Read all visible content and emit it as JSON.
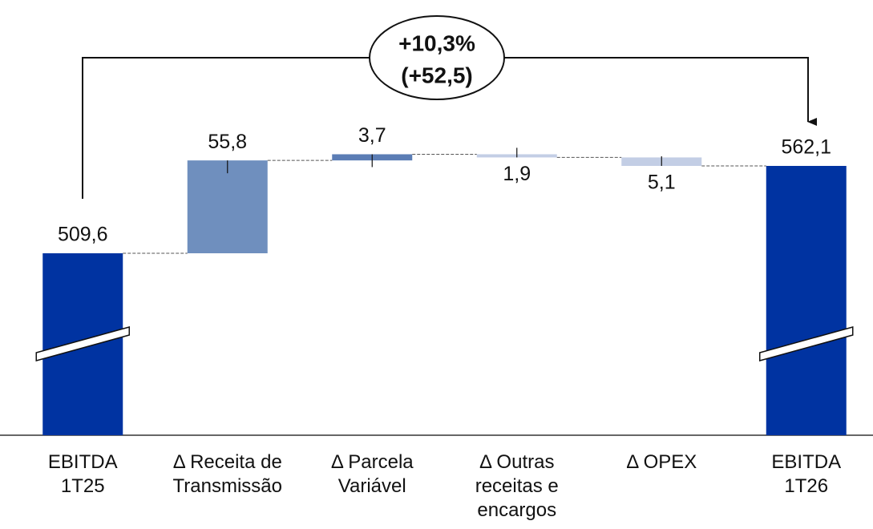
{
  "chart_data": {
    "type": "waterfall",
    "categories": [
      "EBITDA 1T25",
      "Δ  Receita de Transmissão",
      "Δ Parcela Variável",
      "Δ Outras receitas e encargos",
      "Δ OPEX",
      "EBITDA 1T26"
    ],
    "values": [
      509.6,
      55.8,
      3.7,
      -1.9,
      -5.1,
      562.1
    ],
    "value_labels": [
      "509,6",
      "55,8",
      "3,7",
      "1,9",
      "5,1",
      "562,1"
    ],
    "measure": [
      "total",
      "relative",
      "relative",
      "relative",
      "relative",
      "total"
    ],
    "colors": [
      "#0033a1",
      "#6f8fbe",
      "#5b7db5",
      "#c3cee5",
      "#c3cee5",
      "#0033a1"
    ],
    "annotation": [
      "+10,3%",
      "(+52,5)"
    ]
  }
}
